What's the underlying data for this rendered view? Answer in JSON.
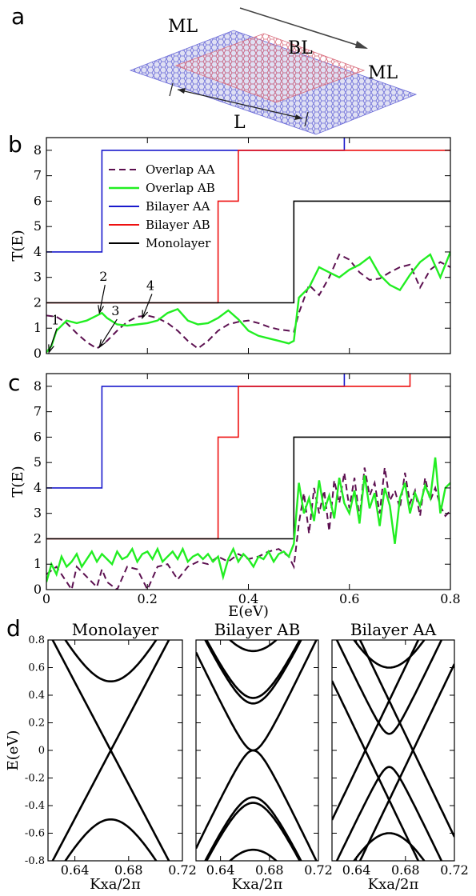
{
  "schematic": {
    "left_label": "ML",
    "middle_label": "BL",
    "right_label": "ML",
    "length_label": "L",
    "colors": {
      "layer1": "#6a6ad8",
      "layer2": "#d86a7a"
    }
  },
  "panel_letters": [
    "a",
    "b",
    "c",
    "d"
  ],
  "chart_data": [
    {
      "id": "b",
      "type": "line",
      "xlim": [
        0,
        0.8
      ],
      "ylim": [
        0,
        8.5
      ],
      "xticks": [
        0,
        0.2,
        0.4,
        0.6,
        0.8
      ],
      "yticks": [
        0,
        1,
        2,
        3,
        4,
        5,
        6,
        7,
        8
      ],
      "xtick_labels": [],
      "ytick_labels": [
        "0",
        "1",
        "2",
        "3",
        "4",
        "5",
        "6",
        "7",
        "8"
      ],
      "xlabel": "",
      "ylabel": "T(E)",
      "legend": "upper-left",
      "annotations": [
        {
          "text": "1",
          "target": [
            0.005,
            0.05
          ]
        },
        {
          "text": "2",
          "target": [
            0.105,
            1.6
          ]
        },
        {
          "text": "3",
          "target": [
            0.105,
            0.25
          ]
        },
        {
          "text": "4",
          "target": [
            0.19,
            1.4
          ]
        }
      ],
      "series": [
        {
          "name": "Overlap AA",
          "color": "#5c1050",
          "dash": true,
          "x": [
            0,
            0.02,
            0.04,
            0.06,
            0.08,
            0.1,
            0.12,
            0.14,
            0.16,
            0.18,
            0.2,
            0.22,
            0.24,
            0.26,
            0.28,
            0.3,
            0.32,
            0.34,
            0.36,
            0.38,
            0.4,
            0.42,
            0.44,
            0.46,
            0.48,
            0.49,
            0.5,
            0.52,
            0.54,
            0.56,
            0.58,
            0.6,
            0.62,
            0.64,
            0.66,
            0.68,
            0.7,
            0.72,
            0.74,
            0.76,
            0.78,
            0.8
          ],
          "y": [
            1.5,
            1.45,
            1.2,
            0.8,
            0.45,
            0.2,
            0.5,
            0.9,
            1.25,
            1.45,
            1.5,
            1.4,
            1.2,
            0.9,
            0.5,
            0.2,
            0.5,
            0.9,
            1.15,
            1.25,
            1.3,
            1.2,
            1.05,
            0.95,
            0.9,
            0.85,
            1.6,
            2.7,
            2.3,
            3.0,
            3.9,
            3.7,
            3.2,
            2.9,
            2.95,
            3.2,
            3.4,
            3.5,
            2.6,
            3.3,
            3.6,
            3.4
          ]
        },
        {
          "name": "Overlap AB",
          "color": "#22ee22",
          "dash": false,
          "x": [
            0,
            0.01,
            0.02,
            0.04,
            0.06,
            0.08,
            0.1,
            0.11,
            0.12,
            0.14,
            0.16,
            0.18,
            0.2,
            0.22,
            0.24,
            0.26,
            0.28,
            0.3,
            0.32,
            0.34,
            0.36,
            0.38,
            0.4,
            0.42,
            0.44,
            0.46,
            0.48,
            0.49,
            0.5,
            0.52,
            0.54,
            0.56,
            0.58,
            0.6,
            0.62,
            0.64,
            0.66,
            0.68,
            0.7,
            0.72,
            0.74,
            0.76,
            0.78,
            0.8
          ],
          "y": [
            0.05,
            0.3,
            0.9,
            1.3,
            1.2,
            1.3,
            1.5,
            1.6,
            1.4,
            1.15,
            1.1,
            1.15,
            1.2,
            1.3,
            1.6,
            1.75,
            1.3,
            1.15,
            1.2,
            1.4,
            1.7,
            1.35,
            0.9,
            0.7,
            0.6,
            0.5,
            0.4,
            0.5,
            2.2,
            2.6,
            3.4,
            3.2,
            3.0,
            3.3,
            3.5,
            3.8,
            3.1,
            2.7,
            2.5,
            3.1,
            3.6,
            3.9,
            3.0,
            4.0
          ]
        },
        {
          "name": "Bilayer AA",
          "color": "#1a1acc",
          "dash": false,
          "x": [
            0,
            0.11,
            0.11,
            0.59,
            0.59,
            0.6,
            0.6
          ],
          "y": [
            4,
            4,
            8,
            8,
            8.6,
            8.6,
            9
          ]
        },
        {
          "name": "Bilayer AB",
          "color": "#ee1111",
          "dash": false,
          "x": [
            0,
            0.34,
            0.34,
            0.38,
            0.38,
            0.6,
            0.6,
            0.8
          ],
          "y": [
            2,
            2,
            6,
            6,
            8,
            8,
            8,
            8
          ]
        },
        {
          "name": "Monolayer",
          "color": "#000000",
          "dash": false,
          "x": [
            0,
            0.49,
            0.49,
            0.72,
            0.72,
            0.8
          ],
          "y": [
            2,
            2,
            6,
            6,
            6,
            6
          ]
        }
      ]
    },
    {
      "id": "c",
      "type": "line",
      "xlim": [
        0,
        0.8
      ],
      "ylim": [
        0,
        8.5
      ],
      "xticks": [
        0,
        0.2,
        0.4,
        0.6,
        0.8
      ],
      "yticks": [
        0,
        1,
        2,
        3,
        4,
        5,
        6,
        7,
        8
      ],
      "xtick_labels": [
        "0",
        "0.2",
        "0.4",
        "0.6",
        "0.8"
      ],
      "ytick_labels": [
        "0",
        "1",
        "2",
        "3",
        "4",
        "5",
        "6",
        "7",
        "8"
      ],
      "xlabel": "E(eV)",
      "ylabel": "T(E)",
      "series": [
        {
          "name": "Overlap AA",
          "color": "#5c1050",
          "dash": true,
          "x": [
            0,
            0.02,
            0.04,
            0.05,
            0.06,
            0.08,
            0.1,
            0.11,
            0.12,
            0.14,
            0.16,
            0.18,
            0.2,
            0.22,
            0.24,
            0.26,
            0.28,
            0.3,
            0.32,
            0.34,
            0.36,
            0.38,
            0.4,
            0.42,
            0.44,
            0.46,
            0.48,
            0.49,
            0.5,
            0.51,
            0.52,
            0.53,
            0.54,
            0.55,
            0.56,
            0.57,
            0.58,
            0.59,
            0.6,
            0.61,
            0.62,
            0.63,
            0.64,
            0.65,
            0.66,
            0.67,
            0.68,
            0.69,
            0.7,
            0.71,
            0.72,
            0.73,
            0.74,
            0.75,
            0.76,
            0.77,
            0.78,
            0.79,
            0.8
          ],
          "y": [
            0.6,
            0.9,
            0.3,
            0.0,
            0.9,
            0.5,
            0.1,
            0.8,
            0.3,
            0.0,
            0.9,
            0.8,
            0.0,
            0.9,
            1.0,
            0.4,
            0.9,
            1.1,
            1.0,
            1.3,
            1.1,
            1.4,
            1.2,
            1.3,
            1.5,
            1.6,
            1.3,
            0.9,
            2.6,
            3.8,
            2.2,
            4.0,
            3.0,
            3.9,
            2.3,
            4.3,
            3.4,
            4.6,
            3.2,
            4.4,
            2.8,
            4.8,
            3.7,
            4.2,
            3.0,
            4.8,
            3.5,
            3.9,
            3.2,
            4.6,
            3.4,
            3.9,
            2.9,
            4.4,
            3.5,
            4.0,
            3.3,
            2.9,
            3.1
          ]
        },
        {
          "name": "Overlap AB",
          "color": "#22ee22",
          "dash": false,
          "x": [
            0,
            0.01,
            0.02,
            0.03,
            0.04,
            0.05,
            0.06,
            0.07,
            0.08,
            0.09,
            0.1,
            0.11,
            0.12,
            0.13,
            0.14,
            0.15,
            0.16,
            0.17,
            0.18,
            0.19,
            0.2,
            0.21,
            0.22,
            0.23,
            0.24,
            0.25,
            0.26,
            0.27,
            0.28,
            0.29,
            0.3,
            0.31,
            0.32,
            0.33,
            0.34,
            0.35,
            0.36,
            0.37,
            0.38,
            0.39,
            0.4,
            0.41,
            0.42,
            0.43,
            0.44,
            0.45,
            0.46,
            0.47,
            0.48,
            0.49,
            0.5,
            0.51,
            0.52,
            0.53,
            0.54,
            0.55,
            0.56,
            0.57,
            0.58,
            0.59,
            0.6,
            0.61,
            0.62,
            0.63,
            0.64,
            0.65,
            0.66,
            0.67,
            0.68,
            0.69,
            0.7,
            0.71,
            0.72,
            0.73,
            0.74,
            0.75,
            0.76,
            0.77,
            0.78,
            0.79,
            0.8
          ],
          "y": [
            0.3,
            1.0,
            0.6,
            1.3,
            0.9,
            1.1,
            1.4,
            0.9,
            1.2,
            1.5,
            1.1,
            1.4,
            1.2,
            1.0,
            1.5,
            1.2,
            1.3,
            1.6,
            1.1,
            1.4,
            1.5,
            1.2,
            1.6,
            1.1,
            1.3,
            1.5,
            1.2,
            1.6,
            1.1,
            1.3,
            1.4,
            1.2,
            1.4,
            1.1,
            1.3,
            0.5,
            1.2,
            1.6,
            1.1,
            1.4,
            1.2,
            0.9,
            1.3,
            1.2,
            1.5,
            1.1,
            1.4,
            1.5,
            1.3,
            1.8,
            4.2,
            3.0,
            3.6,
            2.7,
            4.3,
            3.1,
            3.7,
            2.8,
            4.4,
            3.4,
            3.0,
            3.9,
            2.6,
            4.5,
            3.2,
            3.8,
            2.5,
            4.0,
            3.3,
            1.8,
            3.6,
            4.2,
            3.0,
            3.8,
            3.3,
            4.1,
            3.6,
            5.2,
            3.0,
            4.0,
            4.2
          ]
        },
        {
          "name": "Bilayer AA",
          "color": "#1a1acc",
          "dash": false,
          "x": [
            0,
            0.11,
            0.11,
            0.59,
            0.59,
            0.6,
            0.6
          ],
          "y": [
            4,
            4,
            8,
            8,
            8.6,
            8.6,
            9
          ]
        },
        {
          "name": "Bilayer AB",
          "color": "#ee1111",
          "dash": false,
          "x": [
            0,
            0.34,
            0.34,
            0.38,
            0.38,
            0.72,
            0.72,
            0.8
          ],
          "y": [
            2,
            2,
            6,
            6,
            8,
            8,
            8.6,
            8.6
          ]
        },
        {
          "name": "Monolayer",
          "color": "#000000",
          "dash": false,
          "x": [
            0,
            0.49,
            0.49,
            0.8
          ],
          "y": [
            2,
            2,
            6,
            6
          ]
        }
      ]
    },
    {
      "id": "d-monolayer",
      "type": "line",
      "title": "Monolayer",
      "xlim": [
        0.62,
        0.72
      ],
      "ylim": [
        -0.8,
        0.8
      ],
      "xticks": [
        0.64,
        0.68,
        0.72
      ],
      "yticks": [
        -0.8,
        -0.6,
        -0.4,
        -0.2,
        0,
        0.2,
        0.4,
        0.6,
        0.8
      ],
      "xtick_labels": [
        "0.64",
        "0.68",
        "0.72"
      ],
      "ytick_labels": [
        "-0.8",
        "-0.6",
        "-0.4",
        "-0.2",
        "0",
        "0.2",
        "0.4",
        "0.6",
        "0.8"
      ],
      "xlabel": "Kxa/2π",
      "ylabel": "E(eV)",
      "k0": 0.6667,
      "bands": [
        {
          "kind": "linear",
          "slope": 18.5,
          "offset": 0
        },
        {
          "kind": "gapped",
          "slope": 18.5,
          "gap": 0.5
        }
      ]
    },
    {
      "id": "d-bilayer-ab",
      "type": "line",
      "title": "Bilayer AB",
      "xlim": [
        0.62,
        0.72
      ],
      "ylim": [
        -0.8,
        0.8
      ],
      "xticks": [
        0.64,
        0.68,
        0.72
      ],
      "xtick_labels": [
        "0.64",
        "0.68",
        "0.72"
      ],
      "xlabel": "Kxa/2π",
      "k0": 0.6667,
      "bands": [
        {
          "kind": "gapped",
          "slope": 18.5,
          "gap": 0.0,
          "curv": 0.34
        },
        {
          "kind": "gapped",
          "slope": 18.5,
          "gap": 0.34
        },
        {
          "kind": "gapped",
          "slope": 18.5,
          "gap": 0.38
        },
        {
          "kind": "gapped",
          "slope": 18.5,
          "gap": 0.72
        }
      ]
    },
    {
      "id": "d-bilayer-aa",
      "type": "line",
      "title": "Bilayer AA",
      "xlim": [
        0.62,
        0.72
      ],
      "ylim": [
        -0.8,
        0.8
      ],
      "xticks": [
        0.64,
        0.68,
        0.72
      ],
      "xtick_labels": [
        "0.64",
        "0.68",
        "0.72"
      ],
      "xlabel": "Kxa/2π",
      "k0": 0.6667,
      "bands": [
        {
          "kind": "linear",
          "slope": 18.5,
          "offset": 0.36
        },
        {
          "kind": "linear",
          "slope": 18.5,
          "offset": -0.36
        },
        {
          "kind": "gapped",
          "slope": 18.5,
          "gap": 0.12,
          "center": 0.0
        },
        {
          "kind": "gapped",
          "slope": 18.5,
          "gap": 0.6,
          "center": 0.0
        }
      ]
    }
  ]
}
